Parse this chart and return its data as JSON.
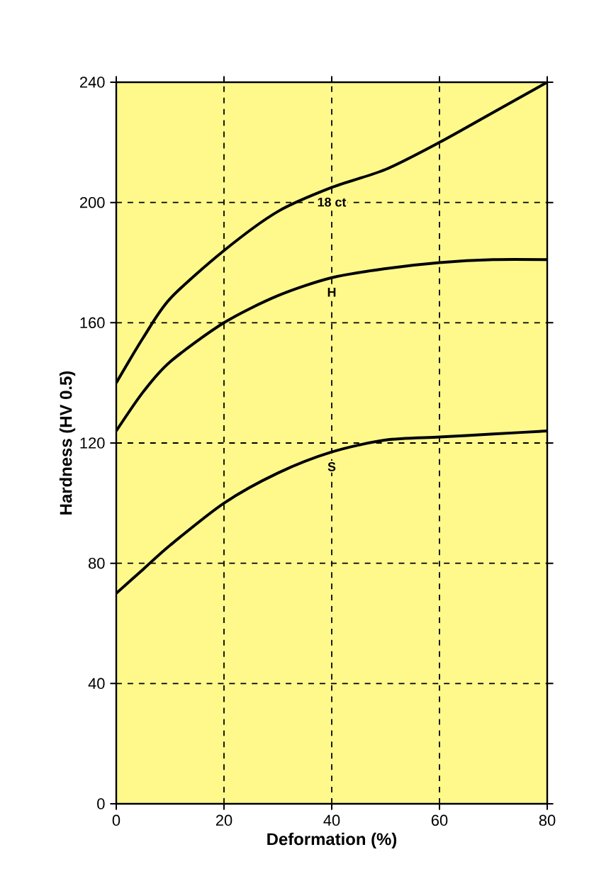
{
  "chart_data": {
    "type": "line",
    "xlabel": "Deformation (%)",
    "ylabel": "Hardness (HV 0.5)",
    "x": [
      0,
      5,
      10,
      20,
      30,
      40,
      50,
      60,
      70,
      80
    ],
    "series": [
      {
        "name": "18 ct",
        "color": "#000000",
        "values": [
          140,
          155,
          168,
          184,
          197,
          205,
          211,
          220,
          230,
          240
        ]
      },
      {
        "name": "H",
        "color": "#000000",
        "values": [
          124,
          137,
          147,
          160,
          169,
          175,
          178,
          180,
          181,
          181
        ]
      },
      {
        "name": "S",
        "color": "#000000",
        "values": [
          70,
          78,
          86,
          100,
          110,
          117,
          121,
          122,
          123,
          124
        ]
      }
    ],
    "xlim": [
      0,
      80
    ],
    "ylim": [
      0,
      240
    ],
    "xticks": [
      0,
      20,
      40,
      60,
      80
    ],
    "yticks": [
      0,
      40,
      80,
      120,
      160,
      200,
      240
    ],
    "grid": true,
    "marker": "none",
    "line_style": "solid"
  }
}
